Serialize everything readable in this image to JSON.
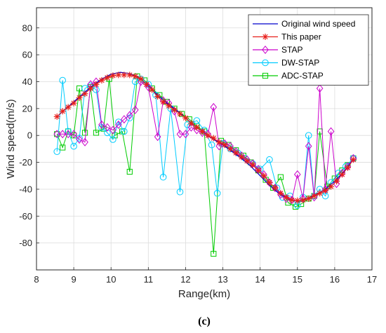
{
  "chart_data": {
    "type": "line",
    "xlabel": "Range(km)",
    "ylabel": "Wind speed(m/s)",
    "caption": "(c)",
    "xlim": [
      8,
      17
    ],
    "ylim": [
      -100,
      95
    ],
    "xticks": [
      "8",
      "9",
      "10",
      "11",
      "12",
      "13",
      "14",
      "15",
      "16",
      "17"
    ],
    "yticks": [
      "-80",
      "-60",
      "-40",
      "-20",
      "0",
      "20",
      "40",
      "60",
      "80"
    ],
    "grid": true,
    "legend_position": "top-right",
    "series": [
      {
        "name": "Original wind speed",
        "color": "#0000cc",
        "marker": "none",
        "x": [
          8.55,
          8.75,
          9.0,
          9.25,
          9.5,
          9.75,
          10.0,
          10.25,
          10.5,
          10.75,
          11.0,
          11.25,
          11.5,
          11.75,
          12.0,
          12.25,
          12.5,
          12.75,
          13.0,
          13.25,
          13.5,
          13.75,
          14.0,
          14.25,
          14.5,
          14.75,
          15.0,
          15.25,
          15.5,
          15.75,
          16.0,
          16.25,
          16.5
        ],
        "y": [
          14,
          19,
          25,
          31,
          37,
          42,
          45.5,
          47,
          46,
          43,
          37,
          30,
          24,
          19,
          13,
          7,
          2,
          -3,
          -7,
          -12,
          -17,
          -23,
          -30,
          -37,
          -43,
          -47,
          -49,
          -47,
          -44,
          -40,
          -34,
          -27,
          -18
        ]
      },
      {
        "name": "This paper",
        "color": "#e8201c",
        "marker": "asterisk",
        "x": [
          8.55,
          8.7,
          8.85,
          9.0,
          9.15,
          9.3,
          9.45,
          9.6,
          9.75,
          9.9,
          10.05,
          10.2,
          10.35,
          10.5,
          10.65,
          10.8,
          10.95,
          11.1,
          11.25,
          11.4,
          11.55,
          11.7,
          11.85,
          12.0,
          12.15,
          12.3,
          12.45,
          12.6,
          12.75,
          12.9,
          13.05,
          13.2,
          13.35,
          13.5,
          13.65,
          13.8,
          13.95,
          14.1,
          14.25,
          14.4,
          14.55,
          14.7,
          14.85,
          15.0,
          15.15,
          15.3,
          15.45,
          15.6,
          15.75,
          15.9,
          16.05,
          16.2,
          16.35,
          16.5
        ],
        "y": [
          14,
          18,
          21,
          24,
          28,
          31,
          35,
          38,
          41,
          43,
          44.5,
          45,
          45,
          45,
          44,
          42,
          38,
          34,
          29,
          25,
          22,
          19,
          16,
          13,
          9,
          6,
          3,
          0,
          -2,
          -5,
          -7,
          -10,
          -13,
          -16,
          -19,
          -22,
          -26,
          -30,
          -35,
          -39,
          -43,
          -46,
          -48,
          -48.5,
          -48,
          -47,
          -45,
          -43,
          -41,
          -38,
          -34,
          -29,
          -24,
          -18
        ]
      },
      {
        "name": "STAP",
        "color": "#cc00cc",
        "marker": "diamond",
        "x": [
          8.55,
          8.7,
          8.85,
          9.0,
          9.15,
          9.3,
          9.45,
          9.6,
          9.75,
          9.9,
          10.05,
          10.2,
          10.35,
          10.5,
          10.65,
          10.8,
          11.0,
          11.25,
          11.4,
          11.55,
          11.7,
          11.85,
          12.0,
          12.15,
          12.3,
          12.45,
          12.6,
          12.75,
          12.9,
          13.05,
          13.2,
          13.35,
          13.5,
          13.65,
          13.8,
          13.95,
          14.1,
          14.25,
          14.4,
          14.55,
          14.7,
          14.85,
          15.0,
          15.15,
          15.3,
          15.45,
          15.6,
          15.75,
          15.9,
          16.05,
          16.2,
          16.35,
          16.5
        ],
        "y": [
          1,
          1,
          1,
          1,
          -3,
          -5,
          38,
          40,
          8,
          6,
          4,
          8,
          12,
          15,
          19,
          40,
          36,
          -1,
          26,
          24,
          18,
          1,
          1,
          6,
          4,
          2,
          1,
          21,
          -8,
          -6,
          -8,
          -12,
          -15,
          -18,
          -21,
          -25,
          -29,
          -35,
          -39,
          -44,
          -47,
          -48,
          -29,
          -47,
          -8,
          -46,
          35,
          -40,
          3,
          -36,
          -28,
          -23,
          -17
        ]
      },
      {
        "name": "DW-STAP",
        "color": "#00ccff",
        "marker": "circle",
        "x": [
          8.55,
          8.7,
          8.85,
          9.0,
          9.15,
          9.3,
          9.45,
          9.6,
          9.75,
          9.9,
          10.05,
          10.2,
          10.35,
          10.5,
          10.65,
          10.8,
          11.0,
          11.2,
          11.4,
          11.6,
          11.85,
          12.05,
          12.3,
          12.5,
          12.7,
          12.85,
          13.0,
          13.2,
          13.4,
          13.6,
          13.8,
          14.0,
          14.25,
          14.45,
          14.6,
          14.8,
          15.0,
          15.15,
          15.3,
          15.45,
          15.6,
          15.75,
          15.9,
          16.1,
          16.3,
          16.5
        ],
        "y": [
          -12,
          41,
          3,
          -8,
          -2,
          35,
          37,
          34,
          6,
          2,
          -3,
          10,
          3,
          13,
          40,
          42,
          38,
          30,
          -31,
          20,
          -42,
          8,
          11,
          4,
          -7,
          -43,
          -6,
          -10,
          -13,
          -17,
          -21,
          -25,
          -18,
          -39,
          -46,
          -45,
          -52,
          -46,
          0,
          -45,
          -40,
          -45,
          -35,
          -28,
          -23,
          -17
        ]
      },
      {
        "name": "ADC-STAP",
        "color": "#00cc00",
        "marker": "square",
        "x": [
          8.55,
          8.7,
          8.85,
          9.0,
          9.15,
          9.3,
          9.45,
          9.6,
          9.8,
          9.95,
          10.1,
          10.3,
          10.5,
          10.7,
          10.9,
          11.1,
          11.3,
          11.5,
          11.7,
          11.9,
          12.1,
          12.3,
          12.5,
          12.75,
          12.95,
          13.15,
          13.35,
          13.55,
          13.75,
          13.95,
          14.15,
          14.35,
          14.55,
          14.75,
          14.95,
          15.1,
          15.3,
          15.45,
          15.6,
          15.8,
          16.0,
          16.2,
          16.35,
          16.5
        ],
        "y": [
          1,
          -9,
          3,
          0,
          35,
          2,
          36,
          2,
          5,
          42,
          0,
          3,
          -27,
          44,
          41,
          35,
          30,
          25,
          20,
          16,
          12,
          7,
          3,
          -88,
          -4,
          -7,
          -11,
          -15,
          -20,
          -26,
          -33,
          -39,
          -31,
          -50,
          -53,
          -51,
          -47,
          -45,
          3,
          -38,
          -32,
          -26,
          -22,
          -17
        ]
      }
    ]
  }
}
